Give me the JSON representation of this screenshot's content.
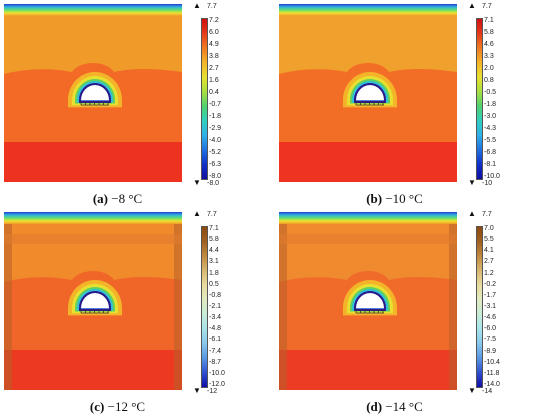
{
  "panels": [
    {
      "caption_label": "(a)",
      "caption_value": "−8 °C",
      "legend_max": "7.7",
      "legend_min": "-8.0",
      "ticks": [
        "7.2",
        "6.0",
        "4.9",
        "3.8",
        "2.7",
        "1.6",
        "0.4",
        "-0.7",
        "-1.8",
        "-2.9",
        "-4.0",
        "-5.2",
        "-6.3",
        "-8.0"
      ],
      "bar_style": "rainbow",
      "field_colors": {
        "top": "#f09a2a",
        "mid": "#f26a26",
        "bottom": "#ee3220"
      }
    },
    {
      "caption_label": "(b)",
      "caption_value": "−10 °C",
      "legend_max": "7.7",
      "legend_min": "-10",
      "ticks": [
        "7.1",
        "5.8",
        "4.6",
        "3.3",
        "2.0",
        "0.8",
        "-0.5",
        "-1.8",
        "-3.0",
        "-4.3",
        "-5.5",
        "-6.8",
        "-8.1",
        "-10.0"
      ],
      "bar_style": "rainbow",
      "field_colors": {
        "top": "#f0a02c",
        "mid": "#f26e27",
        "bottom": "#ee3420"
      }
    },
    {
      "caption_label": "(c)",
      "caption_value": "−12 °C",
      "legend_max": "7.7",
      "legend_min": "-12",
      "ticks": [
        "7.1",
        "5.8",
        "4.4",
        "3.1",
        "1.8",
        "0.5",
        "-0.8",
        "-2.1",
        "-3.4",
        "-4.8",
        "-6.1",
        "-7.4",
        "-8.7",
        "-10.0",
        "-12.0"
      ],
      "bar_style": "earth",
      "field_colors": {
        "top": "#f08a2a",
        "mid": "#f06628",
        "bottom": "#ec3a22"
      }
    },
    {
      "caption_label": "(d)",
      "caption_value": "−14 °C",
      "legend_max": "7.7",
      "legend_min": "-14",
      "ticks": [
        "7.0",
        "5.5",
        "4.1",
        "2.7",
        "1.2",
        "-0.2",
        "-1.7",
        "-3.1",
        "-4.6",
        "-6.0",
        "-7.5",
        "-8.9",
        "-10.4",
        "-11.8",
        "-14.0"
      ],
      "bar_style": "earth",
      "field_colors": {
        "top": "#ef8a2e",
        "mid": "#f06a2a",
        "bottom": "#ec3c24"
      }
    }
  ]
}
